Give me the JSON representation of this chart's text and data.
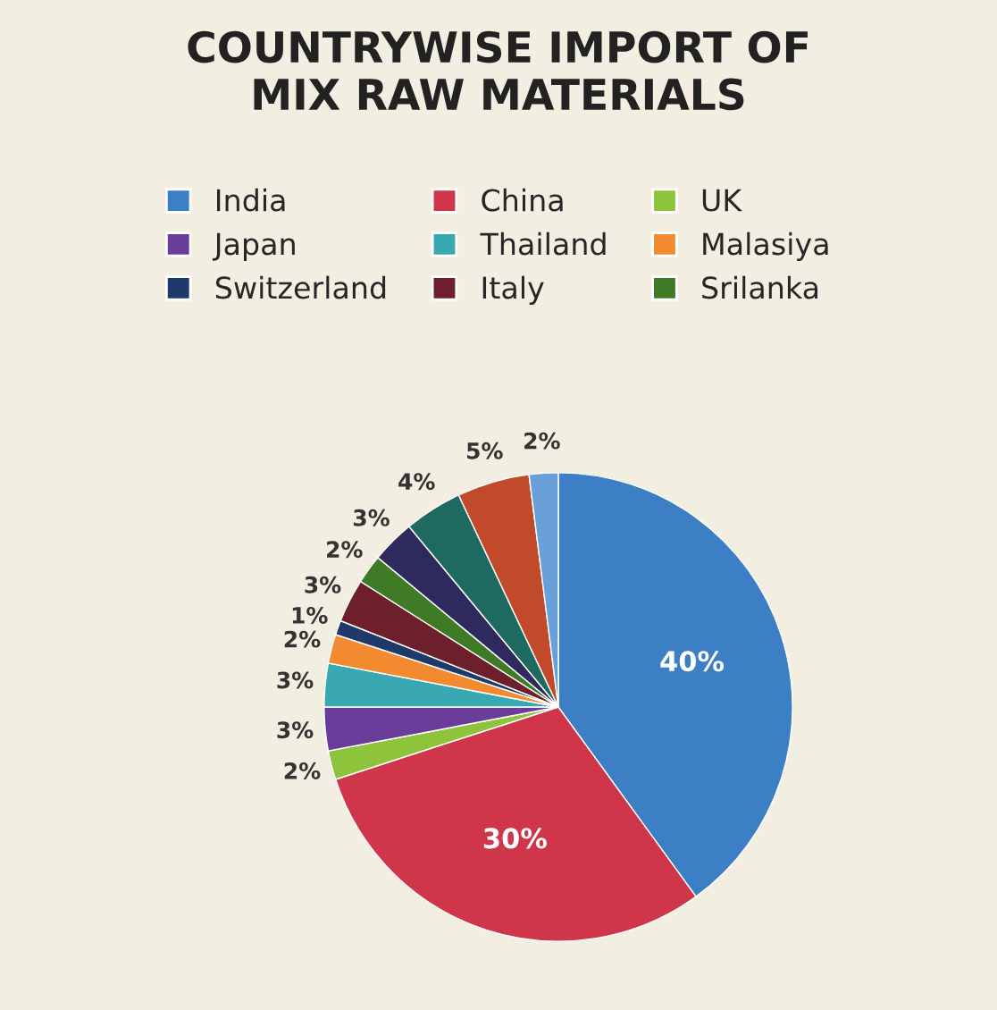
{
  "chart_data": {
    "type": "pie",
    "title": "COUNTRYWISE IMPORT OF\nMIX RAW MATERIALS",
    "categories": [
      "India",
      "China",
      "UK",
      "Japan",
      "Thailand",
      "Malasiya",
      "Switzerland",
      "Italy",
      "Srilanka",
      null,
      null,
      null,
      null
    ],
    "values": [
      40,
      30,
      2,
      3,
      3,
      2,
      1,
      3,
      2,
      3,
      4,
      5,
      2
    ],
    "value_labels": [
      "40%",
      "30%",
      "2%",
      "3%",
      "3%",
      "2%",
      "1%",
      "3%",
      "2%",
      "3%",
      "4%",
      "5%",
      "2%"
    ],
    "colors": [
      "#3d7fc4",
      "#d0364a",
      "#8dc43c",
      "#6a3d9a",
      "#3aa8b0",
      "#f28a30",
      "#1f3a6a",
      "#6e1f2c",
      "#3f7a26",
      "#2e2a5e",
      "#1f6a60",
      "#c04a2a",
      "#6aa0d8"
    ],
    "legend": "top"
  }
}
